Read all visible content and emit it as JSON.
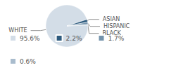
{
  "chart_data": {
    "type": "pie",
    "categories": [
      "WHITE",
      "ASIAN",
      "HISPANIC",
      "BLACK"
    ],
    "values": [
      95.6,
      2.2,
      1.7,
      0.6
    ],
    "value_labels": [
      "95.6%",
      "2.2%",
      "1.7%",
      "0.6%"
    ],
    "colors": [
      "#d3dde7",
      "#2d5a7e",
      "#7392ab",
      "#a9bccd"
    ],
    "legend": "bottom"
  }
}
